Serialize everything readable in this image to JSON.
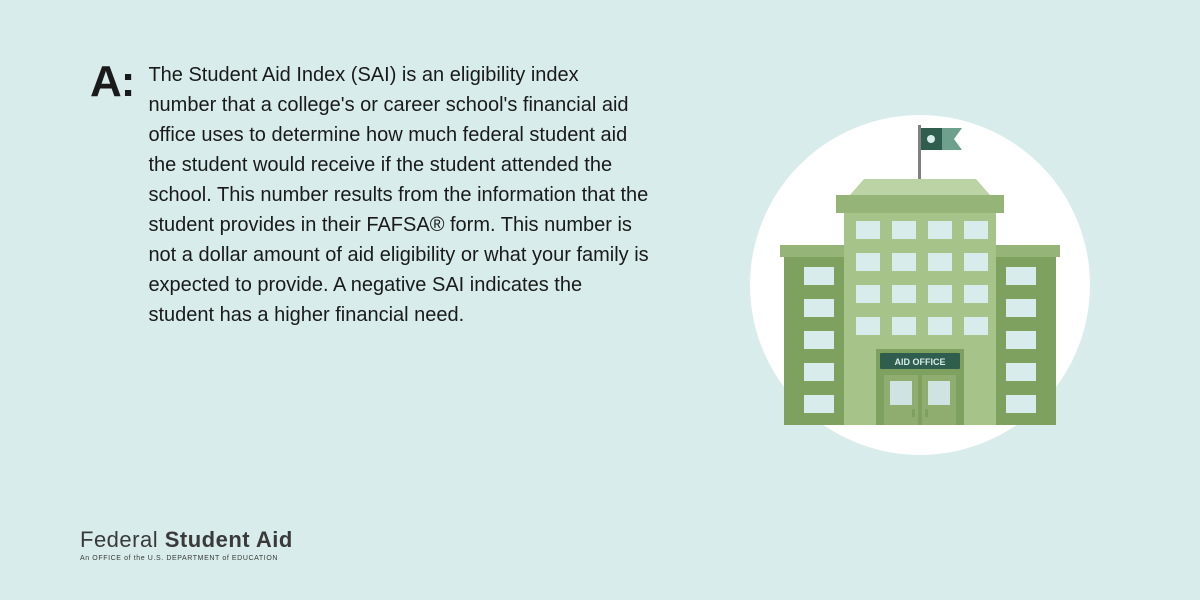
{
  "colors": {
    "background": "#d7eceb",
    "text": "#1a1a1a",
    "building_main": "#a6c389",
    "building_dark": "#7fa15f",
    "building_mid": "#95b578",
    "building_top": "#bcd3a5",
    "window_fill": "#d7eceb",
    "flag_dark": "#2f5e4e",
    "flag_light": "#6ea08e",
    "flag_dot": "#d7eceb",
    "pole": "#808080",
    "door_frame": "#7fa15f",
    "door_panel": "#90ad70",
    "door_window": "#cfe3e2",
    "sign_bg": "#2f5e4e",
    "sign_text": "#d7eceb",
    "logo_text": "#3a3a3a"
  },
  "answer": {
    "prefix": "A:",
    "body": "The Student Aid Index (SAI) is an eligibility index number that a college's or career school's financial aid office uses to determine how much federal student aid the student would receive if the student attended the school. This number results from the information that the student provides in their FAFSA® form. This number is not a dollar amount of aid eligibility or what your family is expected to provide. A negative SAI indicates the student has a higher financial need.",
    "body_fontsize": 20,
    "prefix_fontsize": 44
  },
  "logo": {
    "line1_light": "Federal",
    "line1_bold": "Student Aid",
    "line2": "An OFFICE of the U.S. DEPARTMENT of EDUCATION"
  },
  "building": {
    "sign_label": "AID OFFICE",
    "circle_r": 170
  }
}
